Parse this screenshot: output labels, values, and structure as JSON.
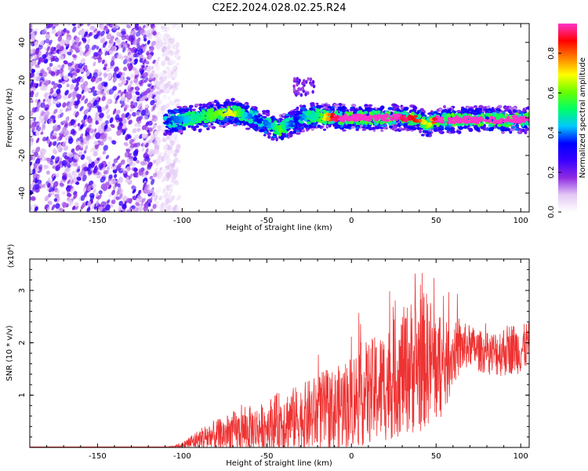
{
  "title": "C2E2.2024.028.02.25.R24",
  "chart_data": [
    {
      "type": "heatmap",
      "xlabel": "Height of straight line (km)",
      "ylabel": "Frequency (Hz)",
      "xlim": [
        -190,
        105
      ],
      "ylim": [
        -50,
        50
      ],
      "xticks": [
        -150,
        -100,
        -50,
        0,
        50,
        100
      ],
      "yticks": [
        -40,
        -20,
        0,
        20,
        40
      ],
      "colorbar": {
        "label": "Normalized spectral amplitude",
        "range": [
          0,
          0.95
        ],
        "ticks": [
          0.0,
          0.2,
          0.4,
          0.6,
          0.8
        ],
        "colors": [
          "#ffffff",
          "#e3c8f5",
          "#8f2be2",
          "#3a00ff",
          "#0000ff",
          "#00c8ff",
          "#00ff66",
          "#66ff00",
          "#ffff00",
          "#ff8000",
          "#ff0000",
          "#ff33cc"
        ]
      },
      "noise_region_x": [
        -190,
        -108
      ],
      "signal_track": {
        "x": [
          -110,
          -100,
          -90,
          -80,
          -70,
          -62,
          -55,
          -48,
          -42,
          -38,
          -33,
          -28,
          -20,
          -10,
          0,
          10,
          20,
          30,
          40,
          45,
          50,
          60,
          70,
          80,
          90,
          100,
          105
        ],
        "frequency": [
          -2,
          -1,
          0,
          2,
          3,
          1,
          -1,
          -4,
          -6,
          -4,
          -2,
          0,
          1,
          0,
          0,
          0,
          0,
          0,
          -1,
          -4,
          -1,
          -1,
          -1,
          -1,
          -1,
          -1,
          -1
        ],
        "peak_amplitude": [
          0.45,
          0.5,
          0.55,
          0.6,
          0.65,
          0.5,
          0.45,
          0.5,
          0.6,
          0.5,
          0.45,
          0.5,
          0.55,
          0.75,
          0.8,
          0.8,
          0.8,
          0.75,
          0.7,
          0.6,
          0.75,
          0.85,
          0.9,
          0.9,
          0.9,
          0.9,
          0.9
        ]
      }
    },
    {
      "type": "line",
      "xlabel": "Height of straight line (km)",
      "ylabel": "SNR (10 * v/v)",
      "yunit_multiplier": "(x10⁴)",
      "xlim": [
        -190,
        105
      ],
      "ylim": [
        0,
        3.6
      ],
      "xticks": [
        -150,
        -100,
        -50,
        0,
        50,
        100
      ],
      "yticks": [
        1,
        2,
        3
      ],
      "line_color": "#ee3333",
      "series": [
        {
          "x": [
            -190,
            -150,
            -110,
            -100,
            -95,
            -90,
            -85,
            -80,
            -75,
            -70,
            -65,
            -60,
            -55,
            -50,
            -45,
            -40,
            -35,
            -30,
            -25,
            -20,
            -15,
            -10,
            -5,
            0,
            5,
            10,
            15,
            20,
            25,
            30,
            35,
            40,
            45,
            50,
            55,
            60,
            65,
            70,
            75,
            80,
            85,
            90,
            95,
            100,
            105
          ],
          "values": [
            0.0,
            0.0,
            0.0,
            0.04,
            0.1,
            0.15,
            0.2,
            0.22,
            0.25,
            0.3,
            0.3,
            0.35,
            0.35,
            0.42,
            0.48,
            0.5,
            0.55,
            0.55,
            0.6,
            0.65,
            0.7,
            0.7,
            0.8,
            0.9,
            1.0,
            1.05,
            1.1,
            1.2,
            1.3,
            1.45,
            1.55,
            1.6,
            1.7,
            1.55,
            1.5,
            1.8,
            1.9,
            1.95,
            1.85,
            1.8,
            1.8,
            1.85,
            1.9,
            1.85,
            2.0
          ],
          "spread": [
            0.0,
            0.0,
            0.0,
            0.05,
            0.15,
            0.2,
            0.3,
            0.3,
            0.35,
            0.4,
            0.4,
            0.45,
            0.45,
            0.5,
            0.55,
            0.6,
            0.6,
            0.65,
            0.7,
            0.75,
            0.8,
            0.8,
            0.85,
            0.9,
            1.0,
            1.0,
            1.05,
            1.1,
            1.15,
            1.2,
            1.3,
            1.35,
            1.3,
            1.1,
            0.9,
            0.6,
            0.5,
            0.4,
            0.4,
            0.4,
            0.45,
            0.5,
            0.5,
            0.45,
            0.45
          ]
        }
      ]
    }
  ]
}
